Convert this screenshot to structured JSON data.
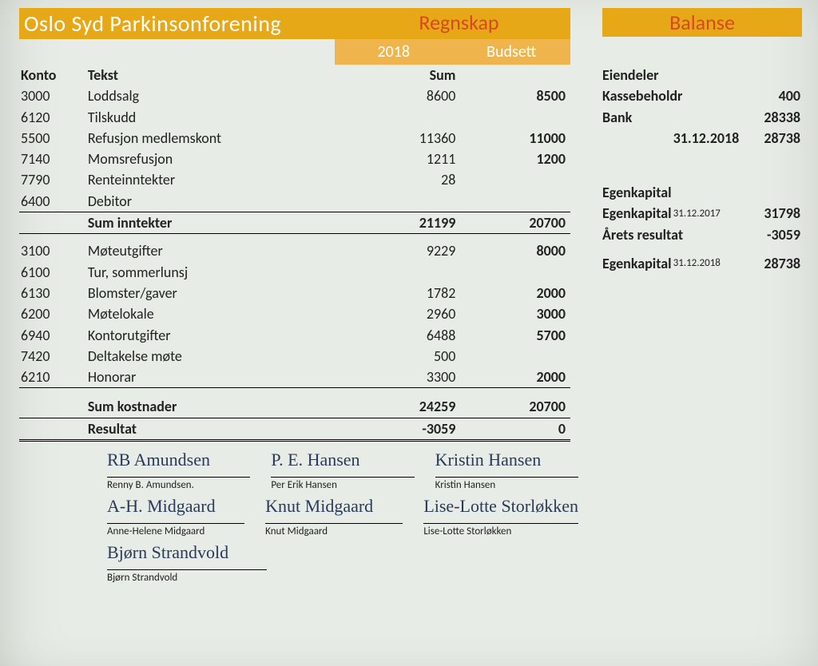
{
  "header": {
    "org_title": "Oslo Syd Parkinsonforening",
    "regnskap_title": "Regnskap",
    "balanse_title": "Balanse",
    "year_col": "2018",
    "budget_col": "Budsett",
    "sum_sub": "Sum"
  },
  "columns": {
    "konto": "Konto",
    "tekst": "Tekst"
  },
  "income": [
    {
      "konto": "3000",
      "tekst": "Loddsalg",
      "sum": "8600",
      "bud": "8500"
    },
    {
      "konto": "6120",
      "tekst": "Tilskudd",
      "sum": "",
      "bud": ""
    },
    {
      "konto": "5500",
      "tekst": "Refusjon medlemskont",
      "sum": "11360",
      "bud": "11000"
    },
    {
      "konto": "7140",
      "tekst": "Momsrefusjon",
      "sum": "1211",
      "bud": "1200"
    },
    {
      "konto": "7790",
      "tekst": "Renteinntekter",
      "sum": "28",
      "bud": ""
    },
    {
      "konto": "6400",
      "tekst": "Debitor",
      "sum": "",
      "bud": ""
    }
  ],
  "income_total": {
    "label": "Sum inntekter",
    "sum": "21199",
    "bud": "20700"
  },
  "expenses": [
    {
      "konto": "3100",
      "tekst": "Møteutgifter",
      "sum": "9229",
      "bud": "8000"
    },
    {
      "konto": "6100",
      "tekst": "Tur, sommerlunsj",
      "sum": "",
      "bud": ""
    },
    {
      "konto": "6130",
      "tekst": "Blomster/gaver",
      "sum": "1782",
      "bud": "2000"
    },
    {
      "konto": "6200",
      "tekst": "Møtelokale",
      "sum": "2960",
      "bud": "3000"
    },
    {
      "konto": "6940",
      "tekst": "Kontorutgifter",
      "sum": "6488",
      "bud": "5700"
    },
    {
      "konto": "7420",
      "tekst": "Deltakelse møte",
      "sum": "500",
      "bud": ""
    },
    {
      "konto": "6210",
      "tekst": "Honorar",
      "sum": "3300",
      "bud": "2000"
    }
  ],
  "expense_total": {
    "label": "Sum kostnader",
    "sum": "24259",
    "bud": "20700"
  },
  "result": {
    "label": "Resultat",
    "sum": "-3059",
    "bud": "0"
  },
  "balance": {
    "eiendeler_title": "Eiendeler",
    "kasse": {
      "label": "Kassebeholdr",
      "val": "400"
    },
    "bank": {
      "label": "Bank",
      "val": "28338"
    },
    "dato1": {
      "label": "31.12.2018",
      "val": "28738"
    },
    "egenkap_title": "Egenkapital",
    "ek1": {
      "label": "Egenkapital",
      "date": "31.12.2017",
      "val": "31798"
    },
    "res": {
      "label": "Årets resultat",
      "val": "-3059"
    },
    "ek2": {
      "label": "Egenkapital",
      "date": "31.12.2018",
      "val": "28738"
    }
  },
  "signatures": [
    [
      {
        "script": "RB Amundsen",
        "name": "Renny B. Amundsen."
      },
      {
        "script": "P. E. Hansen",
        "name": "Per Erik Hansen"
      },
      {
        "script": "Kristin Hansen",
        "name": "Kristin Hansen"
      }
    ],
    [
      {
        "script": "A-H. Midgaard",
        "name": "Anne-Helene Midgaard"
      },
      {
        "script": "Knut Midgaard",
        "name": "Knut Midgaard"
      },
      {
        "script": "Lise-Lotte Storløkken",
        "name": "Lise-Lotte Storløkken"
      }
    ],
    [
      {
        "script": "Bjørn Strandvold",
        "name": "Bjørn Strandvold"
      }
    ]
  ],
  "colors": {
    "bar_bg": "#e6a817",
    "bar_fg": "#ffffff",
    "accent_fg": "#d64a1f",
    "subbar_bg": "#efb54c",
    "page_bg": "#e8ece7",
    "text": "#222222",
    "rule": "#000000"
  }
}
